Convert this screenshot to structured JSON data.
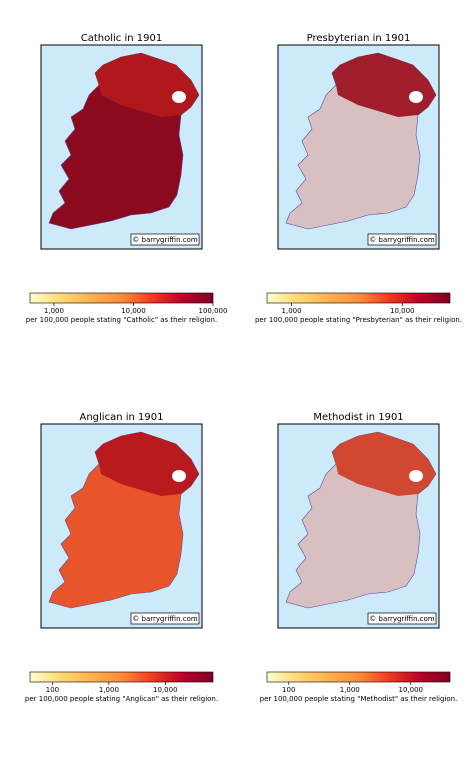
{
  "colormap": [
    "#ffffcc",
    "#fed976",
    "#feb24c",
    "#fd8d3c",
    "#f03b20",
    "#bd0026",
    "#800026"
  ],
  "panels": [
    {
      "title": "Catholic in 1901",
      "credit": "© barrygriffin.com",
      "colorbar": {
        "scale": "log",
        "lim": [
          500,
          100000
        ],
        "ticks": [
          {
            "value": 1000,
            "label": "1,000"
          },
          {
            "value": 10000,
            "label": "10,000"
          },
          {
            "value": 100000,
            "label": "100,000"
          }
        ],
        "label": "per 100,000 people stating \"Catholic\" as their religion."
      }
    },
    {
      "title": "Presbyterian in 1901",
      "credit": "© barrygriffin.com",
      "colorbar": {
        "scale": "log",
        "lim": [
          600,
          27000
        ],
        "ticks": [
          {
            "value": 1000,
            "label": "1,000"
          },
          {
            "value": 10000,
            "label": "10,000"
          }
        ],
        "label": "per 100,000 people stating \"Presbyterian\" as their religion."
      }
    },
    {
      "title": "Anglican in 1901",
      "credit": "© barrygriffin.com",
      "colorbar": {
        "scale": "log",
        "lim": [
          40,
          70000
        ],
        "ticks": [
          100,
          {
            "value": 1000,
            "label": "1,000"
          },
          {
            "value": 10000,
            "label": "10,000"
          }
        ],
        "label": "per 100,000 people stating \"Anglican\" as their religion."
      }
    },
    {
      "title": "Methodist in 1901",
      "credit": "© barrygriffin.com",
      "colorbar": {
        "scale": "log",
        "lim": [
          44,
          44000
        ],
        "ticks": [
          100,
          {
            "value": 1000,
            "label": "1,000"
          },
          {
            "value": 10000,
            "label": "10,000"
          }
        ],
        "label": "per 100,000 people stating \"Methodist\" as their religion."
      }
    }
  ]
}
